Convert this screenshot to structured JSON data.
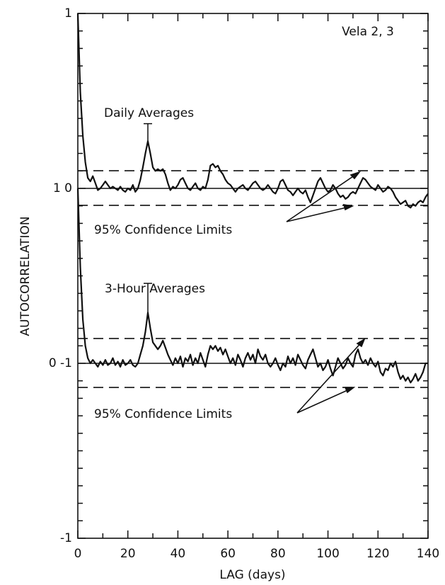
{
  "chart_data": {
    "type": "line",
    "annotation": "Vela 2, 3",
    "xlabel": "LAG (days)",
    "ylabel": "AUTOCORRELATION",
    "xlim": [
      0,
      140
    ],
    "xticks": [
      0,
      20,
      40,
      60,
      80,
      100,
      120,
      140
    ],
    "xminor": [
      10,
      30,
      50,
      70,
      90,
      110,
      130
    ],
    "ylim": [
      -1,
      2
    ],
    "yticks": [
      {
        "value": -1,
        "label": "-1"
      },
      {
        "value": 0,
        "label": "0 -1"
      },
      {
        "value": 1,
        "label": "1 0"
      },
      {
        "value": 2,
        "label": "1"
      }
    ],
    "yminor": [
      -0.9,
      -0.8,
      -0.7,
      -0.6,
      -0.5,
      -0.4,
      -0.3,
      -0.2,
      -0.1,
      0.1,
      0.2,
      0.3,
      0.4,
      0.5,
      0.6,
      0.7,
      0.8,
      0.9,
      1.1,
      1.2,
      1.3,
      1.4,
      1.5,
      1.6,
      1.7,
      1.8,
      1.9
    ],
    "x": [
      0,
      1,
      2,
      3,
      4,
      5,
      6,
      7,
      8,
      9,
      10,
      11,
      12,
      13,
      14,
      15,
      16,
      17,
      18,
      19,
      20,
      21,
      22,
      23,
      24,
      25,
      26,
      27,
      28,
      29,
      30,
      31,
      32,
      33,
      34,
      35,
      36,
      37,
      38,
      39,
      40,
      41,
      42,
      43,
      44,
      45,
      46,
      47,
      48,
      49,
      50,
      51,
      52,
      53,
      54,
      55,
      56,
      57,
      58,
      59,
      60,
      61,
      62,
      63,
      64,
      65,
      66,
      67,
      68,
      69,
      70,
      71,
      72,
      73,
      74,
      75,
      76,
      77,
      78,
      79,
      80,
      81,
      82,
      83,
      84,
      85,
      86,
      87,
      88,
      89,
      90,
      91,
      92,
      93,
      94,
      95,
      96,
      97,
      98,
      99,
      100,
      101,
      102,
      103,
      104,
      105,
      106,
      107,
      108,
      109,
      110,
      111,
      112,
      113,
      114,
      115,
      116,
      117,
      118,
      119,
      120,
      121,
      122,
      123,
      124,
      125,
      126,
      127,
      128,
      129,
      130,
      131,
      132,
      133,
      134,
      135,
      136,
      137,
      138,
      139,
      140
    ],
    "series": [
      {
        "name": "Daily Averages",
        "color": "#111111",
        "baseline": 1,
        "confidence_label": "95% Confidence Limits",
        "confidence": [
          1.101,
          0.903
        ],
        "error_bar": {
          "x": 28,
          "value": 1.27,
          "top": 1.37
        },
        "values": [
          2.0,
          1.55,
          1.3,
          1.15,
          1.06,
          1.04,
          1.07,
          1.03,
          0.99,
          1.0,
          1.02,
          1.04,
          1.02,
          1.0,
          1.01,
          1.0,
          0.99,
          1.01,
          0.99,
          0.98,
          1.0,
          0.99,
          1.02,
          0.98,
          1.0,
          1.05,
          1.12,
          1.2,
          1.27,
          1.2,
          1.12,
          1.1,
          1.11,
          1.1,
          1.11,
          1.08,
          1.03,
          0.99,
          1.01,
          1.0,
          1.02,
          1.05,
          1.06,
          1.03,
          1.0,
          0.99,
          1.01,
          1.03,
          1.0,
          0.99,
          1.01,
          1.0,
          1.05,
          1.13,
          1.14,
          1.12,
          1.13,
          1.1,
          1.08,
          1.05,
          1.03,
          1.02,
          1.0,
          0.98,
          1.0,
          1.01,
          1.02,
          1.0,
          0.99,
          1.01,
          1.03,
          1.04,
          1.02,
          1.0,
          0.99,
          1.0,
          1.02,
          1.0,
          0.98,
          0.97,
          1.0,
          1.04,
          1.05,
          1.02,
          0.99,
          0.98,
          0.96,
          0.98,
          1.0,
          0.98,
          0.97,
          0.99,
          0.95,
          0.92,
          0.96,
          1.0,
          1.04,
          1.06,
          1.03,
          1.0,
          0.98,
          0.99,
          1.02,
          1.0,
          0.97,
          0.95,
          0.96,
          0.94,
          0.95,
          0.97,
          0.98,
          0.97,
          1.0,
          1.03,
          1.06,
          1.05,
          1.03,
          1.01,
          1.0,
          0.99,
          1.02,
          1.0,
          0.98,
          0.99,
          1.01,
          1.0,
          0.98,
          0.95,
          0.93,
          0.91,
          0.92,
          0.93,
          0.9,
          0.89,
          0.91,
          0.9,
          0.92,
          0.93,
          0.92,
          0.95,
          0.97
        ]
      },
      {
        "name": "3-Hour Averages",
        "color": "#111111",
        "baseline": 0,
        "confidence_label": "95% Confidence Limits",
        "confidence": [
          0.142,
          -0.138
        ],
        "error_bar": {
          "x": 28,
          "value": 0.29,
          "top": 0.457
        },
        "values": [
          1.0,
          0.55,
          0.25,
          0.1,
          0.03,
          0.0,
          0.02,
          0.0,
          -0.02,
          0.01,
          -0.01,
          0.02,
          -0.01,
          0.0,
          0.03,
          -0.01,
          0.01,
          -0.02,
          0.02,
          -0.01,
          0.0,
          0.02,
          -0.01,
          -0.02,
          0.0,
          0.05,
          0.1,
          0.18,
          0.29,
          0.2,
          0.12,
          0.1,
          0.08,
          0.1,
          0.13,
          0.09,
          0.05,
          0.02,
          -0.01,
          0.03,
          0.0,
          0.04,
          -0.02,
          0.03,
          0.01,
          0.05,
          -0.01,
          0.03,
          0.0,
          0.06,
          0.02,
          -0.02,
          0.05,
          0.1,
          0.08,
          0.1,
          0.07,
          0.09,
          0.05,
          0.08,
          0.04,
          0.0,
          0.03,
          -0.01,
          0.05,
          0.02,
          -0.02,
          0.03,
          0.06,
          0.02,
          0.05,
          0.0,
          0.08,
          0.04,
          0.02,
          0.05,
          0.0,
          -0.02,
          0.0,
          0.03,
          -0.01,
          -0.04,
          0.0,
          -0.02,
          0.04,
          0.0,
          0.03,
          -0.01,
          0.05,
          0.02,
          -0.01,
          -0.03,
          0.02,
          0.05,
          0.08,
          0.03,
          -0.02,
          0.0,
          -0.04,
          -0.02,
          0.02,
          -0.03,
          -0.07,
          -0.02,
          0.03,
          0.0,
          -0.03,
          -0.01,
          0.03,
          0.0,
          -0.02,
          0.05,
          0.08,
          0.03,
          0.0,
          0.02,
          -0.01,
          0.03,
          0.0,
          -0.02,
          0.01,
          -0.05,
          -0.07,
          -0.03,
          -0.04,
          0.0,
          -0.02,
          0.01,
          -0.05,
          -0.09,
          -0.07,
          -0.1,
          -0.08,
          -0.11,
          -0.09,
          -0.06,
          -0.1,
          -0.08,
          -0.05,
          0.0,
          0.0
        ]
      }
    ]
  }
}
